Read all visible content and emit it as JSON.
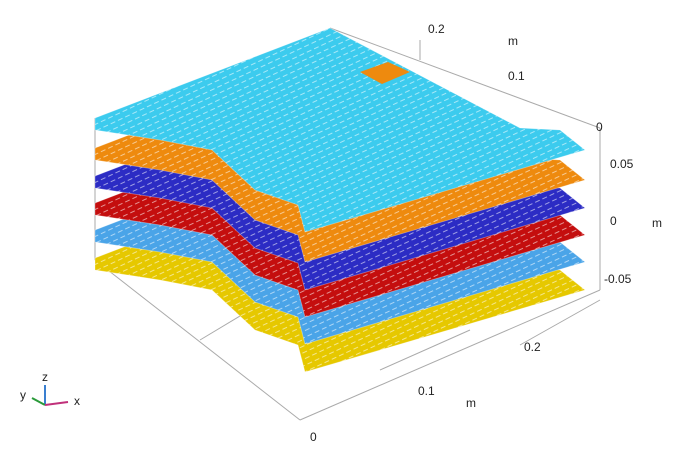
{
  "axes": {
    "y_axis": {
      "ticks": [
        "0.2",
        "0.1",
        "0"
      ],
      "unit": "m"
    },
    "z_axis": {
      "ticks": [
        "0.05",
        "0",
        "-0.05"
      ],
      "unit": "m"
    },
    "x_axis": {
      "ticks": [
        "0.2",
        "0.1",
        "0"
      ],
      "unit": "m"
    }
  },
  "triad": {
    "z": "z",
    "y": "y",
    "x": "x"
  }
}
